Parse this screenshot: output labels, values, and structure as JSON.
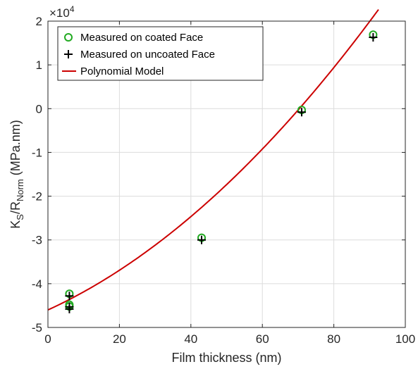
{
  "chart_data": {
    "type": "scatter",
    "xlabel": "Film thickness (nm)",
    "ylabel": {
      "base": "K",
      "sub1": "S",
      "mid": "/R",
      "sub2": "Norm",
      "tail": " (MPa.nm)"
    },
    "y_exponent_label": {
      "prefix": "×10",
      "power": "4"
    },
    "xlim": [
      0,
      100
    ],
    "ylim": [
      -5,
      2
    ],
    "x_ticks": [
      0,
      20,
      40,
      60,
      80,
      100
    ],
    "y_ticks": [
      -5,
      -4,
      -3,
      -2,
      -1,
      0,
      1,
      2
    ],
    "x_tick_labels": [
      "0",
      "20",
      "40",
      "60",
      "80",
      "100"
    ],
    "y_tick_labels": [
      "-5",
      "-4",
      "-3",
      "-2",
      "-1",
      "0",
      "1",
      "2"
    ],
    "grid": true,
    "legend_position": "top-left",
    "y_scale_factor": 10000,
    "series": [
      {
        "name": "Measured on coated Face",
        "marker": "circle",
        "color": "#22aa22",
        "points": [
          {
            "x": 6,
            "y": -42300
          },
          {
            "x": 6,
            "y": -44800
          },
          {
            "x": 6,
            "y": -45200
          },
          {
            "x": 43,
            "y": -29500
          },
          {
            "x": 71,
            "y": -300
          },
          {
            "x": 91,
            "y": 16900
          }
        ]
      },
      {
        "name": "Measured on uncoated Face",
        "marker": "plus",
        "color": "#000000",
        "points": [
          {
            "x": 6,
            "y": -42800
          },
          {
            "x": 6,
            "y": -45300
          },
          {
            "x": 6,
            "y": -45800
          },
          {
            "x": 43,
            "y": -30000
          },
          {
            "x": 71,
            "y": -800
          },
          {
            "x": 91,
            "y": 16300
          }
        ]
      },
      {
        "name": "Polynomial Model",
        "marker": "line",
        "color": "#cc0000",
        "coefficients": {
          "a": 3.98,
          "b": 374,
          "c": -46000
        },
        "x_range": [
          0,
          92.5
        ]
      }
    ]
  }
}
